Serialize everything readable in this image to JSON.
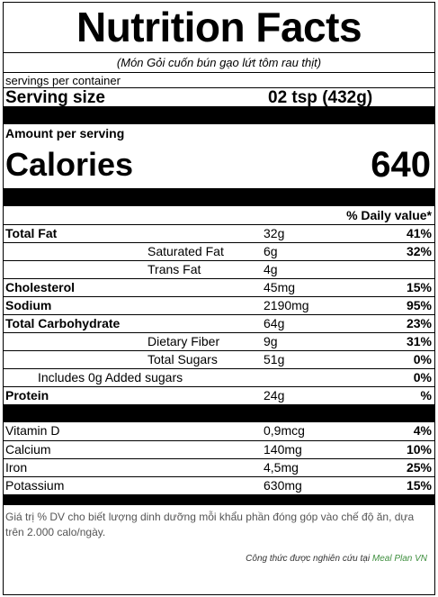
{
  "title": "Nutrition Facts",
  "dish_name": "(Món Gỏi cuốn bún gạo lứt tôm rau thịt)",
  "servings_label": "servings per container",
  "serving_size": {
    "label": "Serving size",
    "value": "02 tsp  (432g)"
  },
  "amount_per_serving": "Amount per serving",
  "calories": {
    "label": "Calories",
    "value": "640"
  },
  "daily_value_header": "% Daily value*",
  "nutrients": [
    {
      "name": "Total Fat",
      "amount": "32g",
      "dv": "41%"
    },
    {
      "name": "Saturated Fat",
      "amount": "6g",
      "dv": "32%"
    },
    {
      "name": "Trans Fat",
      "amount": "4g",
      "dv": ""
    },
    {
      "name": "Cholesterol",
      "amount": "45mg",
      "dv": "15%"
    },
    {
      "name": "Sodium",
      "amount": "2190mg",
      "dv": "95%"
    },
    {
      "name": "Total Carbohydrate",
      "amount": "64g",
      "dv": "23%"
    },
    {
      "name": "Dietary Fiber",
      "amount": "9g",
      "dv": "31%"
    },
    {
      "name": "Total Sugars",
      "amount": "51g",
      "dv": "0%"
    },
    {
      "name": "Includes 0g Added sugars",
      "amount": "",
      "dv": "0%"
    },
    {
      "name": "Protein",
      "amount": "24g",
      "dv": "%"
    }
  ],
  "vitamins": [
    {
      "name": "Vitamin D",
      "amount": "0,9mcg",
      "dv": "4%"
    },
    {
      "name": "Calcium",
      "amount": "140mg",
      "dv": "10%"
    },
    {
      "name": "Iron",
      "amount": "4,5mg",
      "dv": "25%"
    },
    {
      "name": "Potassium",
      "amount": "630mg",
      "dv": "15%"
    }
  ],
  "footnote": "Giá trị % DV cho biết lượng dinh dưỡng mỗi khẩu phần đóng góp vào chế độ ăn, dựa trên 2.000 calo/ngày.",
  "credit": {
    "prefix": "Công thức được nghiên cứu tại ",
    "brand": "Meal Plan VN"
  },
  "colors": {
    "brand": "#3f8f3f",
    "footnote": "#555555"
  }
}
